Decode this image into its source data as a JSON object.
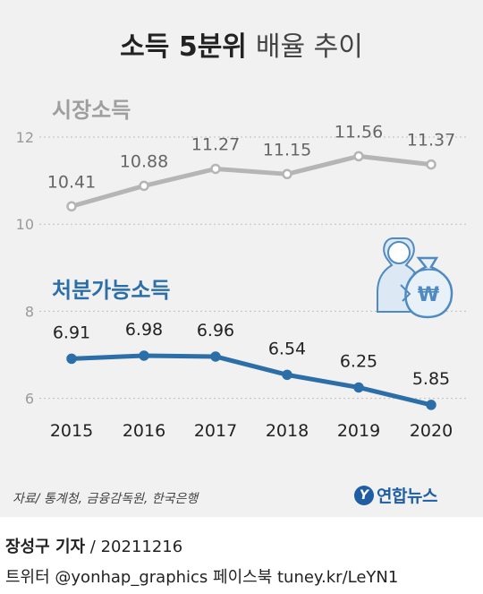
{
  "title": {
    "bold": "소득 5분위",
    "light": "배율 추이"
  },
  "chart_data": {
    "type": "line",
    "x": [
      "2015",
      "2016",
      "2017",
      "2018",
      "2019",
      "2020"
    ],
    "yticks": [
      "12",
      "10",
      "8",
      "6"
    ],
    "ylim": [
      5.4,
      12.3
    ],
    "grid": true,
    "series": [
      {
        "name": "시장소득",
        "values": [
          10.41,
          10.88,
          11.27,
          11.15,
          11.56,
          11.37
        ],
        "color": "#b5b5b5"
      },
      {
        "name": "처분가능소득",
        "values": [
          6.91,
          6.98,
          6.96,
          6.54,
          6.25,
          5.85
        ],
        "color": "#2b6ea8"
      }
    ],
    "icon": "money-bag-person-icon"
  },
  "source": "자료/ 통계청, 금융감독원, 한국은행",
  "logo": {
    "mark": "Y",
    "text": "연합뉴스"
  },
  "credit": {
    "reporter": "장성구 기자",
    "sep": " / ",
    "date": "20211216"
  },
  "social": "트위터 @yonhap_graphics  페이스북 tuney.kr/LeYN1"
}
